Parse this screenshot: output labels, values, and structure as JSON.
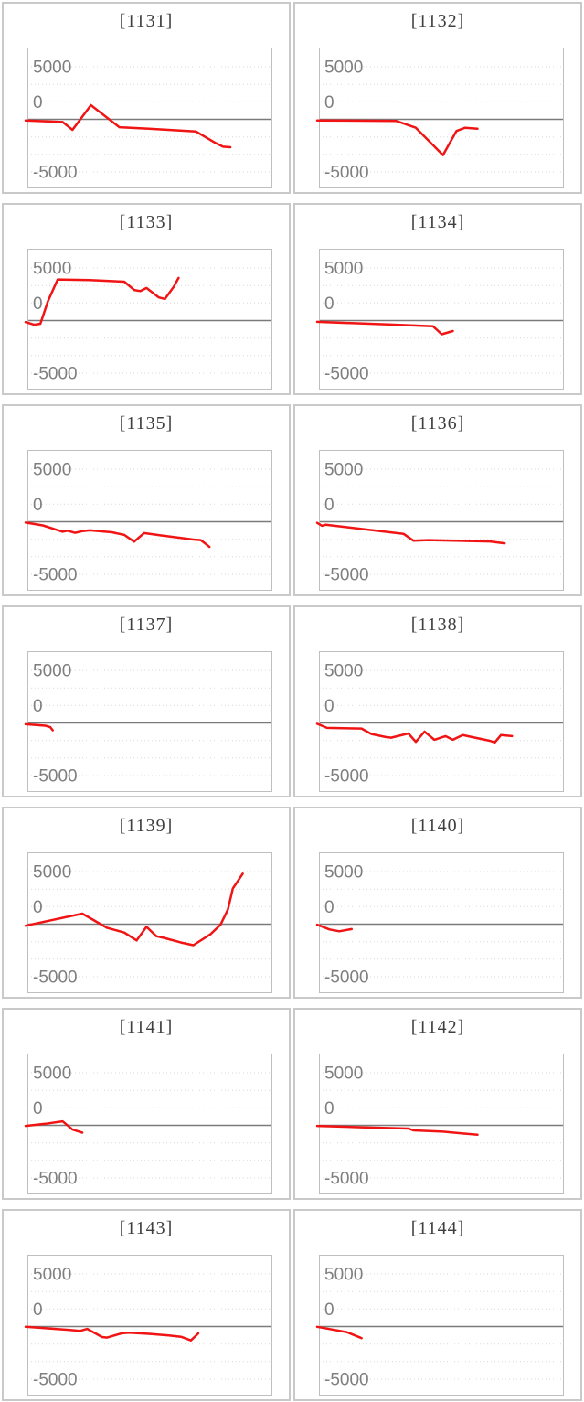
{
  "page": {
    "background": "#ffffff",
    "layout": "grid of 14 small line charts, 2 columns x 7 rows"
  },
  "colors": {
    "series_line": "#f01414",
    "zero_axis_line": "#7a7a7a",
    "gridline": "#d9d9d9",
    "tick_label": "#7f7f7f",
    "plot_border": "#bfbfbf",
    "card_border": "#c9c9c9",
    "title_text": "#3f3f3f"
  },
  "axis": {
    "tick_labels": [
      "5000",
      "0",
      "-5000"
    ],
    "ylim": [
      -6700,
      6700
    ],
    "gridline_values": [
      5000,
      3333,
      1667,
      0,
      -1667,
      -3333,
      -5000
    ],
    "zero_line_value": 0,
    "grid_style": "dotted",
    "x_axis_labels": "none",
    "legend": "none"
  },
  "chart_data": [
    {
      "type": "line",
      "title": "[1131]",
      "x_unit": "fraction_of_plot_width",
      "y_unit": "value",
      "points": [
        [
          0,
          -110
        ],
        [
          0.15,
          -250
        ],
        [
          0.19,
          -1000
        ],
        [
          0.265,
          1350
        ],
        [
          0.38,
          -750
        ],
        [
          0.5,
          -900
        ],
        [
          0.69,
          -1150
        ],
        [
          0.77,
          -2250
        ],
        [
          0.8,
          -2600
        ],
        [
          0.83,
          -2650
        ]
      ]
    },
    {
      "type": "line",
      "title": "[1132]",
      "x_unit": "fraction_of_plot_width",
      "y_unit": "value",
      "points": [
        [
          0,
          -100
        ],
        [
          0.32,
          -150
        ],
        [
          0.4,
          -800
        ],
        [
          0.51,
          -3400
        ],
        [
          0.565,
          -1100
        ],
        [
          0.6,
          -800
        ],
        [
          0.65,
          -900
        ]
      ]
    },
    {
      "type": "line",
      "title": "[1133]",
      "x_unit": "fraction_of_plot_width",
      "y_unit": "value",
      "points": [
        [
          0,
          -150
        ],
        [
          0.035,
          -400
        ],
        [
          0.06,
          -300
        ],
        [
          0.09,
          1800
        ],
        [
          0.13,
          3900
        ],
        [
          0.26,
          3850
        ],
        [
          0.4,
          3700
        ],
        [
          0.44,
          2900
        ],
        [
          0.465,
          2800
        ],
        [
          0.49,
          3100
        ],
        [
          0.54,
          2200
        ],
        [
          0.565,
          2050
        ],
        [
          0.6,
          3200
        ],
        [
          0.62,
          4050
        ]
      ]
    },
    {
      "type": "line",
      "title": "[1134]",
      "x_unit": "fraction_of_plot_width",
      "y_unit": "value",
      "points": [
        [
          0,
          -120
        ],
        [
          0.3,
          -380
        ],
        [
          0.47,
          -550
        ],
        [
          0.505,
          -1300
        ],
        [
          0.55,
          -1000
        ]
      ]
    },
    {
      "type": "line",
      "title": "[1135]",
      "x_unit": "fraction_of_plot_width",
      "y_unit": "value",
      "points": [
        [
          0,
          -80
        ],
        [
          0.07,
          -350
        ],
        [
          0.13,
          -800
        ],
        [
          0.15,
          -950
        ],
        [
          0.17,
          -850
        ],
        [
          0.2,
          -1050
        ],
        [
          0.23,
          -900
        ],
        [
          0.26,
          -820
        ],
        [
          0.35,
          -1000
        ],
        [
          0.4,
          -1250
        ],
        [
          0.44,
          -1900
        ],
        [
          0.48,
          -1080
        ],
        [
          0.55,
          -1300
        ],
        [
          0.63,
          -1550
        ],
        [
          0.68,
          -1700
        ],
        [
          0.71,
          -1750
        ],
        [
          0.73,
          -2100
        ],
        [
          0.745,
          -2400
        ]
      ]
    },
    {
      "type": "line",
      "title": "[1136]",
      "x_unit": "fraction_of_plot_width",
      "y_unit": "value",
      "points": [
        [
          0,
          -100
        ],
        [
          0.02,
          -380
        ],
        [
          0.035,
          -280
        ],
        [
          0.35,
          -1150
        ],
        [
          0.39,
          -1800
        ],
        [
          0.45,
          -1750
        ],
        [
          0.7,
          -1880
        ],
        [
          0.76,
          -2050
        ]
      ]
    },
    {
      "type": "line",
      "title": "[1137]",
      "x_unit": "fraction_of_plot_width",
      "y_unit": "value",
      "points": [
        [
          0,
          -120
        ],
        [
          0.08,
          -260
        ],
        [
          0.1,
          -400
        ],
        [
          0.11,
          -700
        ]
      ]
    },
    {
      "type": "line",
      "title": "[1138]",
      "x_unit": "fraction_of_plot_width",
      "y_unit": "value",
      "points": [
        [
          0,
          -80
        ],
        [
          0.04,
          -470
        ],
        [
          0.18,
          -530
        ],
        [
          0.22,
          -1050
        ],
        [
          0.28,
          -1350
        ],
        [
          0.3,
          -1400
        ],
        [
          0.37,
          -1000
        ],
        [
          0.4,
          -1800
        ],
        [
          0.435,
          -830
        ],
        [
          0.475,
          -1600
        ],
        [
          0.52,
          -1250
        ],
        [
          0.55,
          -1600
        ],
        [
          0.59,
          -1150
        ],
        [
          0.62,
          -1300
        ],
        [
          0.7,
          -1700
        ],
        [
          0.72,
          -1850
        ],
        [
          0.745,
          -1150
        ],
        [
          0.79,
          -1250
        ]
      ]
    },
    {
      "type": "line",
      "title": "[1139]",
      "x_unit": "fraction_of_plot_width",
      "y_unit": "value",
      "points": [
        [
          0,
          -150
        ],
        [
          0.23,
          1000
        ],
        [
          0.33,
          -350
        ],
        [
          0.4,
          -800
        ],
        [
          0.45,
          -1550
        ],
        [
          0.49,
          -250
        ],
        [
          0.53,
          -1150
        ],
        [
          0.56,
          -1300
        ],
        [
          0.63,
          -1750
        ],
        [
          0.68,
          -2000
        ],
        [
          0.75,
          -950
        ],
        [
          0.79,
          -50
        ],
        [
          0.82,
          1400
        ],
        [
          0.84,
          3400
        ],
        [
          0.86,
          4100
        ],
        [
          0.88,
          4800
        ]
      ]
    },
    {
      "type": "line",
      "title": "[1140]",
      "x_unit": "fraction_of_plot_width",
      "y_unit": "value",
      "points": [
        [
          0,
          -50
        ],
        [
          0.05,
          -500
        ],
        [
          0.09,
          -680
        ],
        [
          0.14,
          -470
        ]
      ]
    },
    {
      "type": "line",
      "title": "[1141]",
      "x_unit": "fraction_of_plot_width",
      "y_unit": "value",
      "points": [
        [
          0,
          -50
        ],
        [
          0.08,
          150
        ],
        [
          0.15,
          380
        ],
        [
          0.19,
          -400
        ],
        [
          0.23,
          -700
        ]
      ]
    },
    {
      "type": "line",
      "title": "[1142]",
      "x_unit": "fraction_of_plot_width",
      "y_unit": "value",
      "points": [
        [
          0,
          -50
        ],
        [
          0.18,
          -180
        ],
        [
          0.37,
          -300
        ],
        [
          0.39,
          -480
        ],
        [
          0.51,
          -600
        ],
        [
          0.65,
          -900
        ]
      ]
    },
    {
      "type": "line",
      "title": "[1143]",
      "x_unit": "fraction_of_plot_width",
      "y_unit": "value",
      "points": [
        [
          0,
          -30
        ],
        [
          0.18,
          -320
        ],
        [
          0.22,
          -420
        ],
        [
          0.25,
          -230
        ],
        [
          0.31,
          -1000
        ],
        [
          0.33,
          -1050
        ],
        [
          0.39,
          -640
        ],
        [
          0.42,
          -580
        ],
        [
          0.5,
          -700
        ],
        [
          0.58,
          -850
        ],
        [
          0.63,
          -970
        ],
        [
          0.67,
          -1320
        ],
        [
          0.7,
          -650
        ]
      ]
    },
    {
      "type": "line",
      "title": "[1144]",
      "x_unit": "fraction_of_plot_width",
      "y_unit": "value",
      "points": [
        [
          0,
          -30
        ],
        [
          0.07,
          -320
        ],
        [
          0.12,
          -530
        ],
        [
          0.18,
          -1100
        ]
      ]
    }
  ]
}
